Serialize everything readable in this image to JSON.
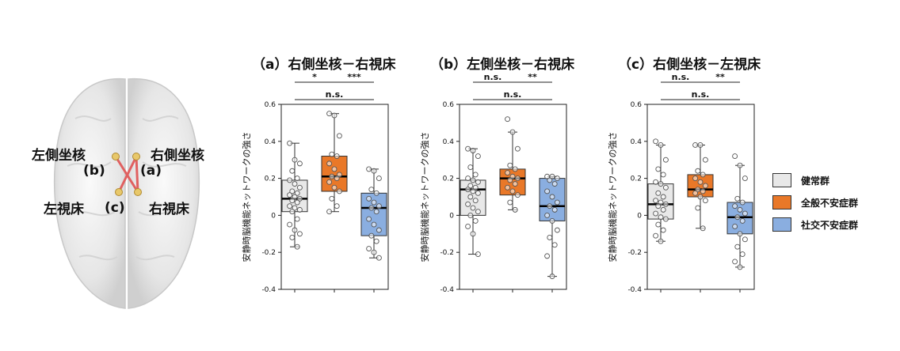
{
  "brain": {
    "label_left_caudate": "左側坐核",
    "label_right_caudate": "右側坐核",
    "label_b": "(b)",
    "label_a": "(a)",
    "label_left_thalamus": "左視床",
    "label_c": "(c)",
    "label_right_thalamus": "右視床",
    "connection_color": "#e06060"
  },
  "legend": [
    {
      "label": "健常群",
      "color": "#e8e8e8"
    },
    {
      "label": "全般不安症群",
      "color": "#e97828"
    },
    {
      "label": "社交不安症群",
      "color": "#8aaee0"
    }
  ],
  "chart_data": [
    {
      "type": "boxplot",
      "title": "（a）右側坐核－右視床",
      "ylabel": "安静時脳機能ネットワークの強さ",
      "ylim": [
        -0.4,
        0.6
      ],
      "yticks": [
        "0.6",
        "0.4",
        "0.2",
        "0",
        "-0.2",
        "-0.4"
      ],
      "groups": [
        {
          "name": "健常群",
          "min": -0.17,
          "q1": 0.02,
          "median": 0.09,
          "q3": 0.19,
          "max": 0.39,
          "points": [
            0.39,
            0.3,
            0.28,
            0.24,
            0.2,
            0.19,
            0.17,
            0.15,
            0.13,
            0.12,
            0.11,
            0.1,
            0.09,
            0.08,
            0.07,
            0.05,
            0.04,
            0.03,
            0.02,
            -0.02,
            -0.05,
            -0.08,
            -0.1,
            -0.12,
            -0.17
          ]
        },
        {
          "name": "全般不安症群",
          "min": 0.02,
          "q1": 0.13,
          "median": 0.21,
          "q3": 0.32,
          "max": 0.55,
          "points": [
            0.55,
            0.54,
            0.43,
            0.33,
            0.32,
            0.28,
            0.25,
            0.22,
            0.21,
            0.2,
            0.18,
            0.15,
            0.13,
            0.09,
            0.05,
            0.02
          ]
        },
        {
          "name": "社交不安症群",
          "min": -0.23,
          "q1": -0.11,
          "median": 0.04,
          "q3": 0.12,
          "max": 0.25,
          "points": [
            0.25,
            0.24,
            0.2,
            0.14,
            0.12,
            0.09,
            0.07,
            0.05,
            0.04,
            0.02,
            -0.02,
            -0.05,
            -0.08,
            -0.11,
            -0.14,
            -0.18,
            -0.2,
            -0.23
          ]
        }
      ],
      "significance": [
        {
          "label": "*",
          "from": 0,
          "to": 1
        },
        {
          "label": "***",
          "from": 1,
          "to": 2
        },
        {
          "label": "n.s.",
          "from": 0,
          "to": 2
        }
      ]
    },
    {
      "type": "boxplot",
      "title": "（b）左側坐核－右視床",
      "ylabel": "安静時脳機能ネットワークの強さ",
      "ylim": [
        -0.4,
        0.6
      ],
      "yticks": [
        "0.6",
        "0.4",
        "0.2",
        "0",
        "-0.2",
        "-0.4"
      ],
      "groups": [
        {
          "name": "健常群",
          "min": -0.21,
          "q1": 0.0,
          "median": 0.14,
          "q3": 0.19,
          "max": 0.36,
          "points": [
            0.36,
            0.35,
            0.32,
            0.26,
            0.22,
            0.2,
            0.19,
            0.18,
            0.16,
            0.15,
            0.14,
            0.13,
            0.12,
            0.1,
            0.08,
            0.06,
            0.04,
            0.02,
            0.0,
            -0.03,
            -0.06,
            -0.1,
            -0.21
          ]
        },
        {
          "name": "全般不安症群",
          "min": 0.03,
          "q1": 0.11,
          "median": 0.2,
          "q3": 0.25,
          "max": 0.45,
          "points": [
            0.52,
            0.45,
            0.36,
            0.27,
            0.25,
            0.23,
            0.21,
            0.2,
            0.19,
            0.17,
            0.15,
            0.13,
            0.11,
            0.07,
            0.03
          ]
        },
        {
          "name": "社交不安症群",
          "min": -0.33,
          "q1": -0.03,
          "median": 0.05,
          "q3": 0.2,
          "max": 0.21,
          "points": [
            0.21,
            0.21,
            0.2,
            0.19,
            0.17,
            0.13,
            0.1,
            0.07,
            0.05,
            0.03,
            0.0,
            -0.03,
            -0.08,
            -0.12,
            -0.16,
            -0.22,
            -0.33
          ]
        }
      ],
      "significance": [
        {
          "label": "n.s.",
          "from": 0,
          "to": 1
        },
        {
          "label": "**",
          "from": 1,
          "to": 2
        },
        {
          "label": "n.s.",
          "from": 0,
          "to": 2
        }
      ]
    },
    {
      "type": "boxplot",
      "title": "（c）右側坐核－左視床",
      "ylabel": "安静時脳機能ネットワークの強さ",
      "ylim": [
        -0.4,
        0.6
      ],
      "yticks": [
        "0.6",
        "0.4",
        "0.2",
        "0",
        "-0.2",
        "-0.4"
      ],
      "groups": [
        {
          "name": "健常群",
          "min": -0.14,
          "q1": -0.02,
          "median": 0.06,
          "q3": 0.17,
          "max": 0.38,
          "points": [
            0.4,
            0.38,
            0.3,
            0.25,
            0.22,
            0.18,
            0.17,
            0.15,
            0.12,
            0.1,
            0.08,
            0.07,
            0.06,
            0.05,
            0.03,
            0.01,
            -0.01,
            -0.02,
            -0.05,
            -0.08,
            -0.11,
            -0.14
          ]
        },
        {
          "name": "全般不安症群",
          "min": -0.07,
          "q1": 0.1,
          "median": 0.14,
          "q3": 0.22,
          "max": 0.38,
          "points": [
            0.38,
            0.38,
            0.3,
            0.24,
            0.22,
            0.2,
            0.18,
            0.16,
            0.14,
            0.13,
            0.12,
            0.1,
            0.08,
            0.04,
            -0.07
          ]
        },
        {
          "name": "社交不安症群",
          "min": -0.28,
          "q1": -0.1,
          "median": -0.01,
          "q3": 0.07,
          "max": 0.27,
          "points": [
            0.32,
            0.27,
            0.2,
            0.09,
            0.07,
            0.05,
            0.03,
            0.01,
            -0.01,
            -0.03,
            -0.06,
            -0.1,
            -0.13,
            -0.17,
            -0.21,
            -0.25,
            -0.28
          ]
        }
      ],
      "significance": [
        {
          "label": "n.s.",
          "from": 0,
          "to": 1
        },
        {
          "label": "**",
          "from": 1,
          "to": 2
        },
        {
          "label": "n.s.",
          "from": 0,
          "to": 2
        }
      ]
    }
  ]
}
